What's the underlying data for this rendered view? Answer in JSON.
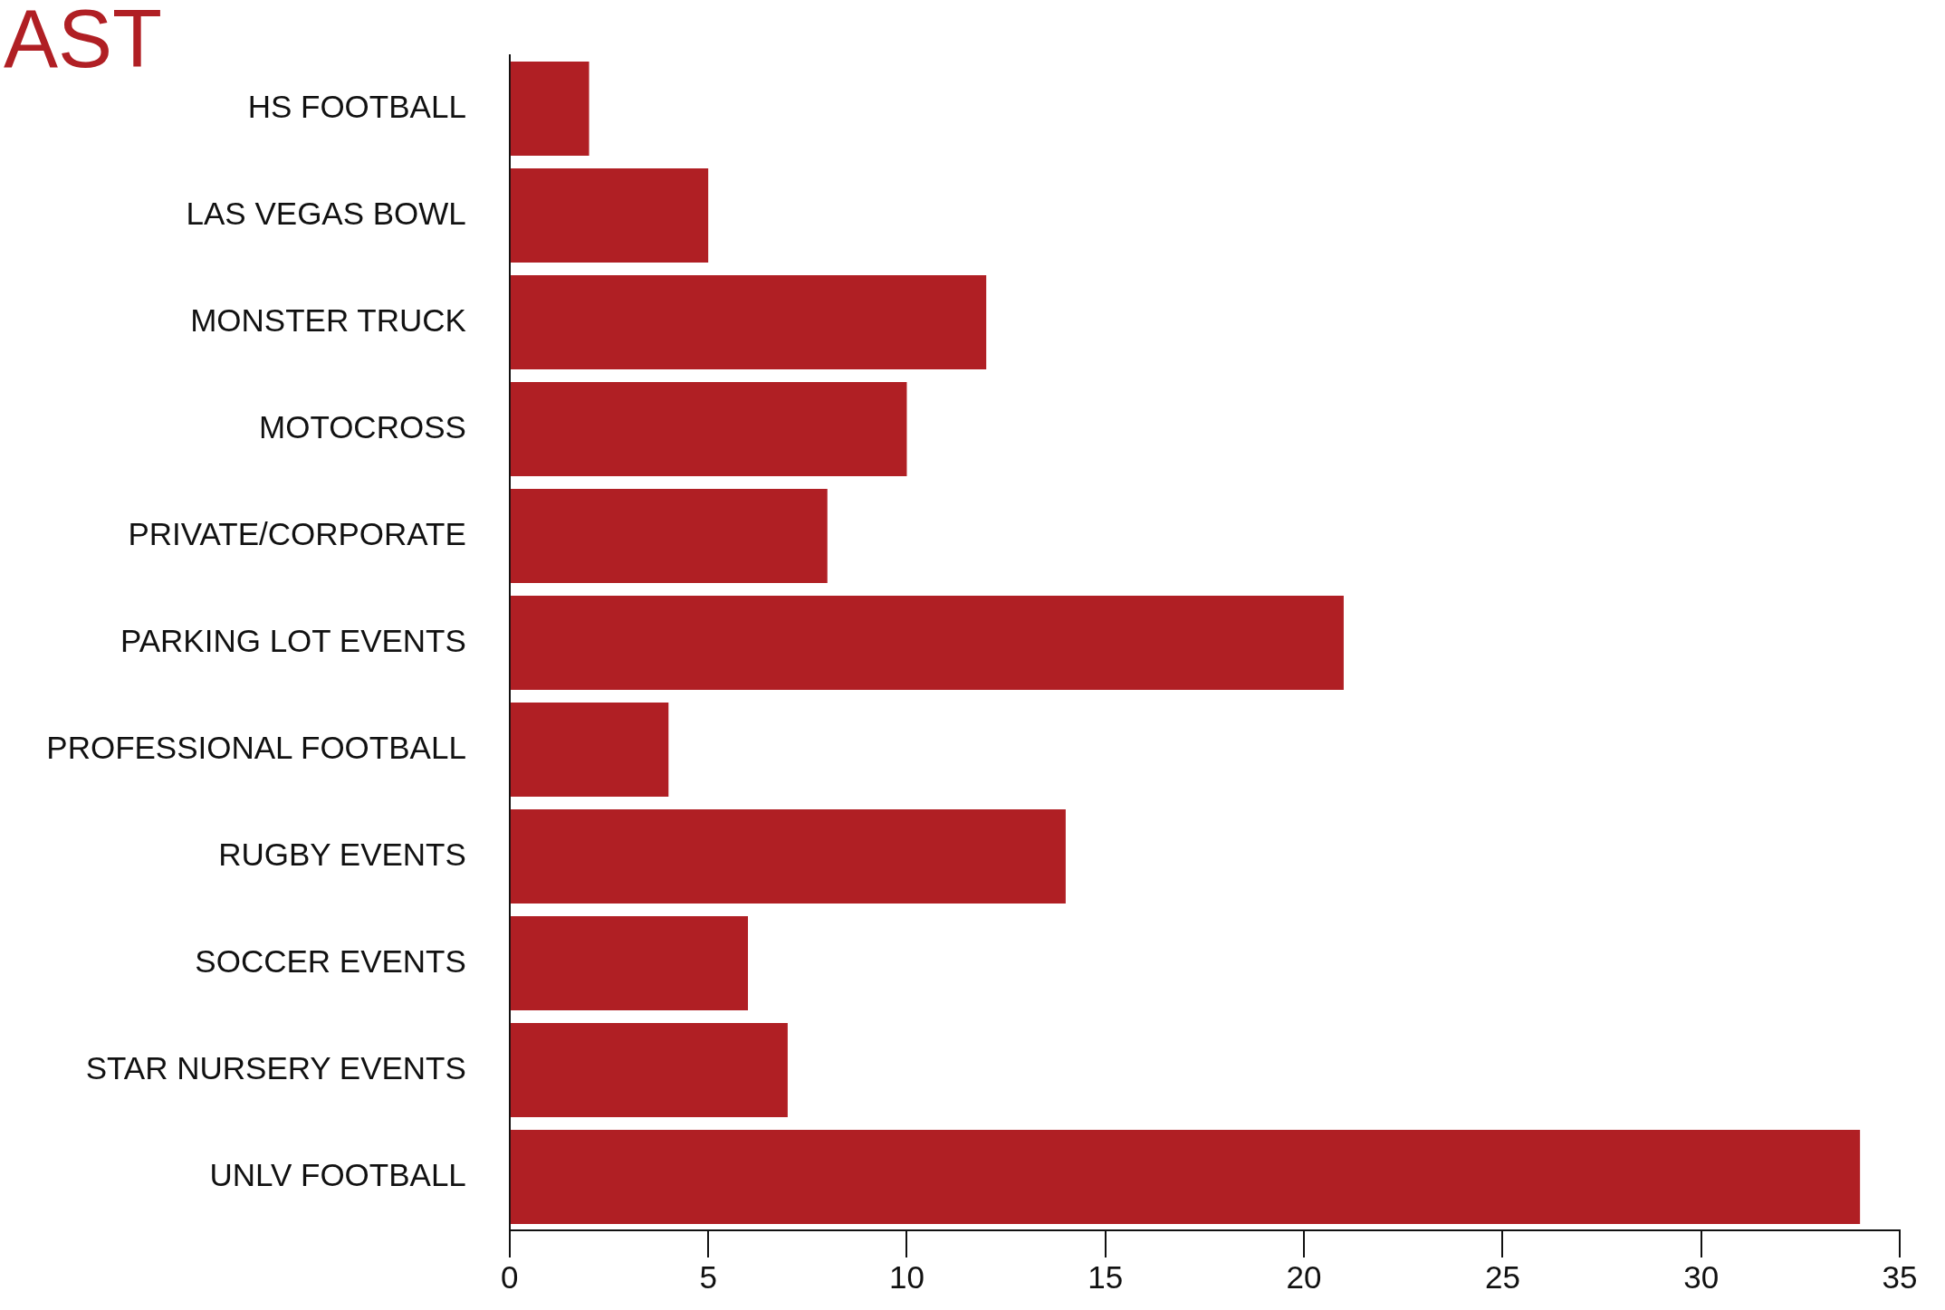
{
  "chart_data": {
    "type": "bar",
    "orientation": "horizontal",
    "title": "AST",
    "categories": [
      "HS FOOTBALL",
      "LAS VEGAS BOWL",
      "MONSTER TRUCK",
      "MOTOCROSS",
      "PRIVATE/CORPORATE",
      "PARKING LOT EVENTS",
      "PROFESSIONAL FOOTBALL",
      "RUGBY EVENTS",
      "SOCCER EVENTS",
      "STAR NURSERY EVENTS",
      "UNLV FOOTBALL"
    ],
    "values": [
      2,
      5,
      12,
      10,
      8,
      21,
      4,
      14,
      6,
      7,
      34
    ],
    "color": "#b01f24",
    "xlim": [
      0,
      35
    ],
    "xticks": [
      0,
      5,
      10,
      15,
      20,
      25,
      30,
      35
    ],
    "grid": false,
    "legend": false
  }
}
